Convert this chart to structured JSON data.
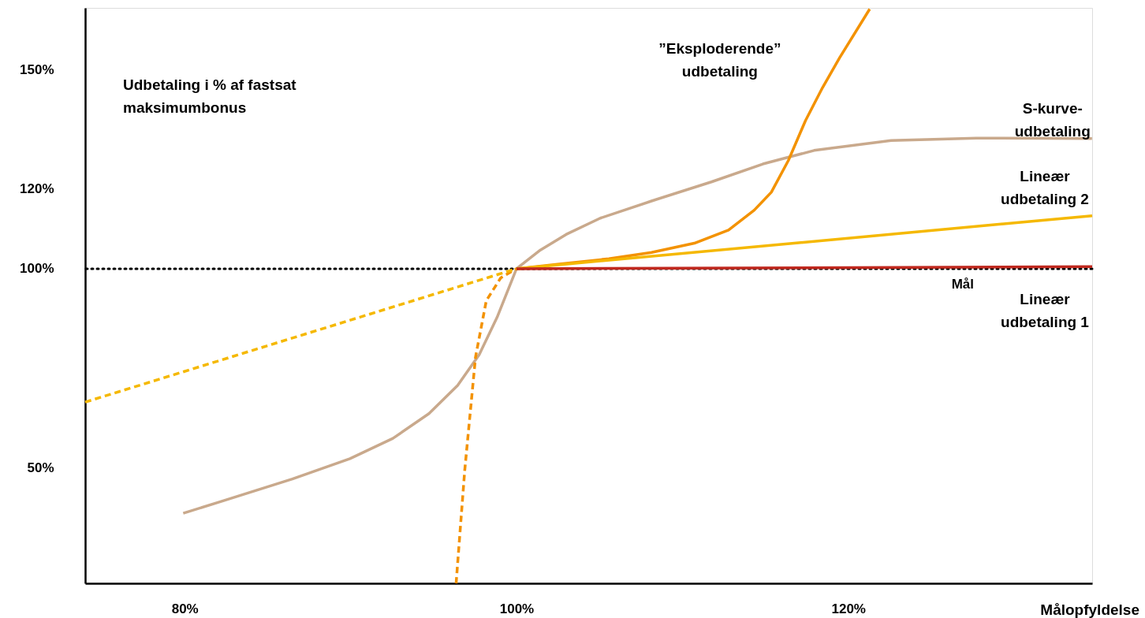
{
  "chart_data": {
    "type": "line",
    "xlabel": "Målopfyldelse",
    "ylabel": "Udbetaling i % af fastsat\nmaksimumbonus",
    "xlim": [
      74,
      134.7
    ],
    "ylim": [
      21,
      165.5
    ],
    "xticks": [
      {
        "value": 80,
        "label": "80%"
      },
      {
        "value": 100,
        "label": "100%"
      },
      {
        "value": 120,
        "label": "120%"
      }
    ],
    "yticks": [
      {
        "value": 50,
        "label": "50%"
      },
      {
        "value": 100,
        "label": "100%"
      },
      {
        "value": 120,
        "label": "120%"
      },
      {
        "value": 150,
        "label": "150%"
      }
    ],
    "grid": false,
    "marker": "none",
    "ref_lines": [
      {
        "axis": "y",
        "value": 100,
        "label": "Mål",
        "color": "#000000",
        "line_style": "dotted"
      }
    ],
    "series": [
      {
        "name": "S-kurve-\nudbetaling",
        "color": "#c9a98c",
        "line_style": "solid",
        "x": [
          79.91,
          82.16,
          86.49,
          89.96,
          92.55,
          94.72,
          96.45,
          97.75,
          98.83,
          100,
          101.44,
          102.99,
          105.05,
          108.14,
          111.75,
          114.85,
          117.94,
          122.58,
          127.73,
          134.69
        ],
        "values": [
          38.6,
          41.5,
          47.2,
          52.3,
          57.4,
          63.6,
          70.7,
          78.4,
          87.8,
          100,
          104.7,
          108.6,
          112.7,
          117.0,
          121.8,
          126.3,
          129.7,
          132.2,
          132.8,
          132.7
        ]
      },
      {
        "name": "”Eksploderende”\nudbetaling",
        "color": "#f39200",
        "line_style": "solid",
        "x": [
          100,
          102.47,
          105.57,
          108.14,
          110.72,
          112.78,
          114.33,
          115.36,
          116.39,
          117.42,
          118.45,
          119.48,
          121.29
        ],
        "values": [
          100,
          101.1,
          102.5,
          104.1,
          106.4,
          109.7,
          114.7,
          119.2,
          127.2,
          137.2,
          145.5,
          153,
          165.2
        ]
      },
      {
        "color": "#f39200",
        "line_style": "dashed",
        "x": [
          96.36,
          96.88,
          97.53,
          98.18,
          99.05,
          100
        ],
        "values": [
          21,
          49.4,
          77.8,
          92.0,
          97.7,
          100
        ]
      },
      {
        "name": "Lineær\nudbetaling 2",
        "color": "#f5b800",
        "line_style": "solid",
        "x": [
          100,
          134.7
        ],
        "values": [
          100,
          113.3
        ]
      },
      {
        "color": "#f5b800",
        "line_style": "dashed",
        "x": [
          74,
          100
        ],
        "values": [
          66.5,
          100
        ]
      },
      {
        "name": "Lineær\nudbetaling 1",
        "color": "#c0281e",
        "line_style": "solid",
        "x": [
          100,
          134.7
        ],
        "values": [
          100,
          100.5
        ]
      }
    ]
  }
}
